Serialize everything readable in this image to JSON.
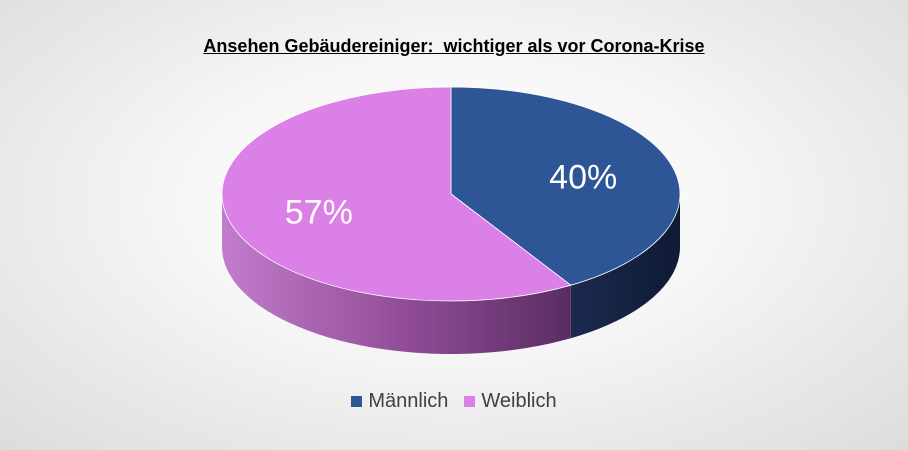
{
  "chart_data": {
    "type": "pie",
    "title": "Ansehen Gebäudereiniger:  wichtiger als vor Corona-Krise",
    "categories": [
      "Männlich",
      "Weiblich"
    ],
    "values": [
      40,
      57
    ],
    "labels": [
      "40%",
      "57%"
    ],
    "colors": [
      "#2e5596",
      "#db80e6"
    ],
    "side_colors": [
      "#14213f",
      "#8a3f8f"
    ],
    "legend_position": "bottom",
    "style": "3d"
  }
}
